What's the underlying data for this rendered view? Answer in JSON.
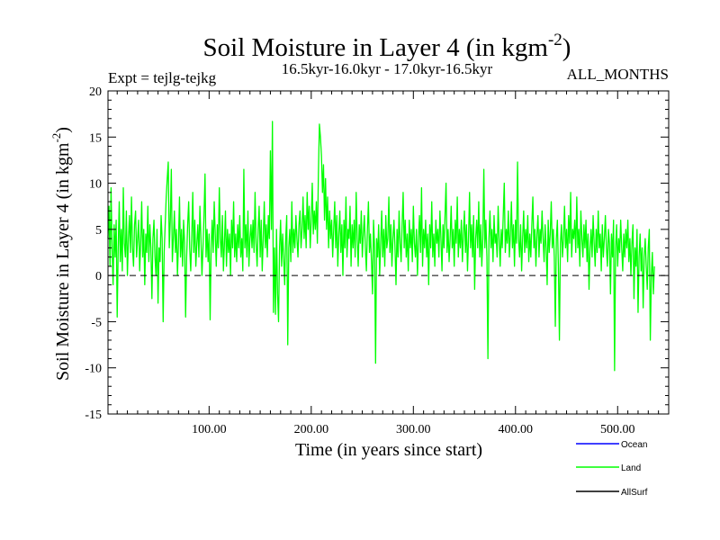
{
  "chart_data": {
    "type": "line",
    "title": "Soil Moisture in Layer 4 (in kgm",
    "title_sup": "-2",
    "title_close": ")",
    "subtitle_left": "Expt = tejlg-tejkg",
    "subtitle_center": "16.5kyr-16.0kyr - 17.0kyr-16.5kyr",
    "subtitle_right": "ALL_MONTHS",
    "xlabel": "Time (in years since start)",
    "ylabel": "Soil Moisture in Layer 4 (in kgm",
    "ylabel_sup": "-2",
    "ylabel_close": ")",
    "xlim": [
      1,
      550
    ],
    "ylim": [
      -15,
      20
    ],
    "x_ticks": [
      100,
      200,
      300,
      400,
      500
    ],
    "x_tick_labels": [
      "100.00",
      "200.00",
      "300.00",
      "400.00",
      "500.00"
    ],
    "y_ticks": [
      -15,
      -10,
      -5,
      0,
      5,
      10,
      15,
      20
    ],
    "y_tick_labels": [
      "-15",
      "-10",
      "-5",
      "0",
      "5",
      "10",
      "15",
      "20"
    ],
    "reference_line": 0,
    "series": [
      {
        "name": "Ocean",
        "color": "#0000ff",
        "values": []
      },
      {
        "name": "Land",
        "color": "#00ff00",
        "x_start": 1,
        "x_step": 1,
        "values": [
          4.0,
          7.5,
          1.0,
          9.5,
          3.0,
          -1.0,
          5.5,
          2.0,
          6.0,
          -4.5,
          3.0,
          8.0,
          1.5,
          5.0,
          0.5,
          9.5,
          3.5,
          2.0,
          7.0,
          0.0,
          4.0,
          6.5,
          2.5,
          8.5,
          3.0,
          1.0,
          5.5,
          7.0,
          2.0,
          4.0,
          6.0,
          0.5,
          3.5,
          8.0,
          2.0,
          5.0,
          -1.0,
          4.5,
          2.5,
          7.5,
          1.5,
          5.5,
          3.0,
          -2.5,
          4.0,
          6.0,
          2.0,
          0.0,
          5.0,
          -3.0,
          3.0,
          1.5,
          6.5,
          4.0,
          -5.0,
          2.5,
          5.5,
          8.5,
          10.5,
          12.3,
          3.0,
          6.0,
          11.5,
          1.5,
          4.0,
          7.0,
          2.5,
          5.0,
          0.0,
          3.5,
          8.5,
          2.0,
          5.0,
          1.0,
          6.0,
          3.5,
          -4.5,
          2.0,
          5.5,
          8.0,
          3.0,
          0.5,
          4.0,
          9.0,
          2.5,
          6.0,
          1.0,
          3.5,
          5.5,
          2.0,
          7.5,
          4.0,
          0.0,
          3.0,
          6.5,
          11.0,
          2.0,
          5.0,
          1.5,
          4.5,
          -4.8,
          3.0,
          6.0,
          2.5,
          8.0,
          4.5,
          1.0,
          5.5,
          3.0,
          9.5,
          4.0,
          2.0,
          6.5,
          0.5,
          3.5,
          7.0,
          1.0,
          5.0,
          2.5,
          4.5,
          0.0,
          6.0,
          3.0,
          8.0,
          2.0,
          4.5,
          1.5,
          5.5,
          3.0,
          6.5,
          2.0,
          4.0,
          0.5,
          11.5,
          3.0,
          5.5,
          2.0,
          7.0,
          1.0,
          4.0,
          5.5,
          3.0,
          6.0,
          2.5,
          9.0,
          3.5,
          1.0,
          5.0,
          7.5,
          2.0,
          6.0,
          0.5,
          4.0,
          8.0,
          3.0,
          5.5,
          2.0,
          6.5,
          4.0,
          13.5,
          5.0,
          16.7,
          -4.0,
          3.0,
          -4.2,
          5.0,
          -2.0,
          -5.0,
          3.0,
          6.0,
          1.0,
          4.5,
          2.0,
          -1.0,
          4.0,
          6.5,
          -7.5,
          3.0,
          5.0,
          1.5,
          8.0,
          2.5,
          5.0,
          3.0,
          6.5,
          4.0,
          2.0,
          5.5,
          7.0,
          3.0,
          5.0,
          8.5,
          4.0,
          6.5,
          3.0,
          9.0,
          5.0,
          7.5,
          3.0,
          6.0,
          10.0,
          4.5,
          7.0,
          5.0,
          8.0,
          3.5,
          11.0,
          16.4,
          15.0,
          13.0,
          9.0,
          12.0,
          6.0,
          10.5,
          5.0,
          8.5,
          3.0,
          7.0,
          4.0,
          6.0,
          2.0,
          5.0,
          8.0,
          3.0,
          6.5,
          1.0,
          4.5,
          7.0,
          2.5,
          5.5,
          0.0,
          6.0,
          3.0,
          8.5,
          2.0,
          5.0,
          4.0,
          7.5,
          1.0,
          5.5,
          3.0,
          6.0,
          2.0,
          9.0,
          4.0,
          1.0,
          5.5,
          3.5,
          7.0,
          2.0,
          4.5,
          6.5,
          3.0,
          0.5,
          5.0,
          8.0,
          2.5,
          4.5,
          1.5,
          -2.0,
          6.0,
          3.0,
          -9.5,
          4.0,
          2.0,
          5.5,
          0.0,
          3.5,
          7.0,
          2.0,
          5.0,
          1.0,
          6.5,
          3.0,
          4.0,
          8.5,
          2.5,
          5.5,
          1.0,
          4.0,
          6.0,
          3.0,
          -1.0,
          5.0,
          2.0,
          7.0,
          3.5,
          1.5,
          5.5,
          9.0,
          3.0,
          6.0,
          2.0,
          4.5,
          0.5,
          6.0,
          3.0,
          5.0,
          1.5,
          7.5,
          3.5,
          2.0,
          5.0,
          0.0,
          4.0,
          6.5,
          2.5,
          9.5,
          1.0,
          5.0,
          3.0,
          6.0,
          2.0,
          4.5,
          -1.0,
          5.5,
          3.0,
          8.0,
          2.0,
          4.5,
          1.0,
          6.0,
          3.5,
          5.0,
          2.0,
          7.0,
          4.0,
          0.5,
          5.5,
          3.0,
          6.5,
          10.0,
          2.5,
          5.0,
          1.5,
          4.0,
          7.5,
          3.0,
          5.0,
          1.0,
          6.0,
          3.5,
          8.5,
          2.0,
          5.0,
          3.0,
          6.0,
          1.5,
          4.5,
          7.0,
          2.5,
          5.5,
          0.5,
          4.0,
          9.0,
          3.0,
          5.5,
          2.0,
          6.5,
          -1.5,
          4.0,
          6.0,
          3.0,
          8.0,
          2.0,
          5.5,
          1.0,
          4.0,
          11.5,
          3.0,
          6.0,
          2.0,
          -9.0,
          4.0,
          7.0,
          3.0,
          5.0,
          1.5,
          6.5,
          3.5,
          4.5,
          2.0,
          7.5,
          4.0,
          1.0,
          5.0,
          3.0,
          6.5,
          10.0,
          2.5,
          5.0,
          3.5,
          7.0,
          2.0,
          4.5,
          8.0,
          3.0,
          5.5,
          1.0,
          6.0,
          3.5,
          12.3,
          4.0,
          2.0,
          5.5,
          0.5,
          4.0,
          7.0,
          2.5,
          5.0,
          3.0,
          6.5,
          1.5,
          4.5,
          2.0,
          5.5,
          8.5,
          3.0,
          5.0,
          1.0,
          4.5,
          6.5,
          2.0,
          5.0,
          3.5,
          7.0,
          4.0,
          1.5,
          5.5,
          3.0,
          -1.0,
          6.0,
          2.5,
          4.5,
          8.0,
          3.0,
          5.0,
          2.0,
          -5.5,
          4.0,
          6.0,
          1.0,
          -7.0,
          3.5,
          5.5,
          2.0,
          4.0,
          7.5,
          3.0,
          5.0,
          1.5,
          6.5,
          3.5,
          9.0,
          2.0,
          5.0,
          4.0,
          6.0,
          2.5,
          8.5,
          3.0,
          5.0,
          1.0,
          7.0,
          4.0,
          2.0,
          5.5,
          3.0,
          6.0,
          1.5,
          4.5,
          -1.5,
          3.0,
          5.0,
          2.0,
          6.5,
          3.5,
          1.0,
          5.0,
          2.5,
          7.0,
          3.0,
          4.5,
          0.5,
          5.5,
          2.0,
          4.0,
          6.5,
          3.0,
          1.0,
          5.0,
          3.5,
          -2.0,
          4.5,
          2.0,
          6.0,
          -10.3,
          3.0,
          5.5,
          1.0,
          4.0,
          2.5,
          6.0,
          3.0,
          0.5,
          4.5,
          2.0,
          5.0,
          3.0,
          6.0,
          1.5,
          4.0,
          0.0,
          3.5,
          5.5,
          -2.5,
          3.0,
          1.0,
          5.0,
          -4.0,
          2.0,
          4.5,
          0.5,
          3.0,
          -3.5,
          2.0,
          4.0,
          1.0,
          -1.5,
          3.0,
          5.0,
          -7.0,
          0.0,
          2.5,
          -2.0,
          1.0
        ]
      },
      {
        "name": "AllSurf",
        "color": "#000000",
        "values": []
      }
    ]
  }
}
